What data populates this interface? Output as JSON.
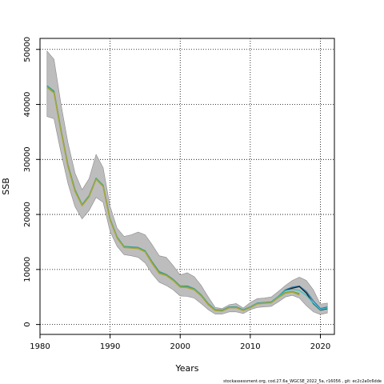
{
  "chart_data": {
    "type": "line",
    "xlabel": "Years",
    "ylabel": "SSB",
    "xlim": [
      1980,
      2022
    ],
    "ylim": [
      -1800,
      52000
    ],
    "x_ticks": [
      1980,
      1990,
      2000,
      2010,
      2020
    ],
    "y_ticks": [
      0,
      10000,
      20000,
      30000,
      40000,
      50000
    ],
    "grid": "dotted",
    "footer": "stockassessment.org, cod.27.6a_WGCSE_2022_5a, r16056 , git: ec2c2a0c6dde",
    "colors": {
      "band": "#bdbdbd",
      "band_edge": "#8a8a8a",
      "series_black": "#1a1a1a",
      "series_blue": "#2c7fb8",
      "series_cyan": "#31c3c3",
      "series_green": "#5aa02c",
      "series_olive": "#a7a63c"
    },
    "years": [
      1981,
      1982,
      1983,
      1984,
      1985,
      1986,
      1987,
      1988,
      1989,
      1990,
      1991,
      1992,
      1993,
      1994,
      1995,
      1996,
      1997,
      1998,
      1999,
      2000,
      2001,
      2002,
      2003,
      2004,
      2005,
      2006,
      2007,
      2008,
      2009,
      2010,
      2011,
      2012,
      2013,
      2014,
      2015,
      2016,
      2017,
      2018,
      2019,
      2020,
      2021
    ],
    "band_upper": [
      49700,
      48200,
      40000,
      33000,
      27500,
      24500,
      26500,
      30900,
      28500,
      21500,
      17500,
      16000,
      16300,
      16800,
      16300,
      14500,
      12500,
      12200,
      10700,
      9000,
      9400,
      8700,
      7100,
      5000,
      3100,
      2900,
      3600,
      3800,
      3000,
      4000,
      4700,
      4800,
      5000,
      6000,
      7100,
      8000,
      8600,
      8000,
      6300,
      3700,
      3900
    ],
    "band_lower": [
      37800,
      37400,
      31200,
      25600,
      21400,
      19200,
      20700,
      23100,
      22200,
      16900,
      14200,
      12700,
      12500,
      12200,
      11200,
      9200,
      7700,
      7100,
      6300,
      5200,
      5100,
      4800,
      3800,
      2700,
      1900,
      1900,
      2300,
      2300,
      2000,
      2700,
      3100,
      3200,
      3300,
      4100,
      5000,
      5300,
      4800,
      3400,
      2300,
      1800,
      2100
    ],
    "series": [
      {
        "color_key": "series_blue",
        "values": [
          43400,
          42400,
          35400,
          29000,
          24500,
          21800,
          23400,
          26600,
          25300,
          19200,
          15900,
          14200,
          14100,
          14000,
          13400,
          11400,
          9600,
          9100,
          8200,
          7000,
          7000,
          6500,
          5400,
          3800,
          2700,
          2600,
          3200,
          3200,
          2700,
          3200,
          3900,
          4000,
          4100,
          5100,
          6300,
          6800,
          7000,
          6000,
          4300,
          2900,
          3200
        ]
      },
      {
        "color_key": "series_black",
        "values": [
          43200,
          42200,
          35200,
          28800,
          24300,
          21700,
          23300,
          26500,
          25200,
          19100,
          15800,
          14100,
          14000,
          13900,
          13300,
          11200,
          9400,
          9000,
          8100,
          6900,
          6800,
          6400,
          5300,
          3700,
          2600,
          2500,
          3100,
          3100,
          2600,
          3100,
          3800,
          3900,
          4000,
          5000,
          6200,
          6600,
          6900,
          5700,
          3800,
          2600,
          2900
        ]
      },
      {
        "color_key": "series_cyan",
        "values": [
          43300,
          42300,
          35300,
          28900,
          24400,
          21750,
          23350,
          26550,
          25250,
          19150,
          15850,
          14150,
          14050,
          13950,
          13350,
          11300,
          9500,
          9050,
          8150,
          6950,
          6900,
          6450,
          5350,
          3750,
          2650,
          2550,
          3150,
          3150,
          2650,
          3150,
          3850,
          3950,
          4050,
          5050,
          6150,
          6400,
          6200,
          5300,
          3900,
          2700,
          3000
        ]
      },
      {
        "color_key": "series_green",
        "values": [
          43250,
          42250,
          35250,
          28850,
          24350,
          21700,
          23300,
          26500,
          25200,
          19100,
          15800,
          14100,
          14000,
          13900,
          13300,
          11250,
          9450,
          9000,
          8100,
          6900,
          6850,
          6400,
          5300,
          3700,
          2600,
          2500,
          3100,
          3100,
          2600,
          3100,
          3800,
          3900,
          4000,
          4950,
          5800,
          6000,
          5600,
          null,
          null,
          null,
          null
        ]
      },
      {
        "color_key": "series_olive",
        "values": [
          43100,
          42100,
          35100,
          28700,
          24200,
          21600,
          23200,
          26400,
          25100,
          19000,
          15700,
          14000,
          13900,
          13800,
          13200,
          11100,
          9300,
          8900,
          8000,
          6800,
          6700,
          6300,
          5200,
          3600,
          2550,
          2450,
          3050,
          3050,
          2550,
          3050,
          3750,
          3850,
          3950,
          4900,
          5700,
          5900,
          5400,
          null,
          null,
          null,
          null
        ]
      }
    ]
  }
}
